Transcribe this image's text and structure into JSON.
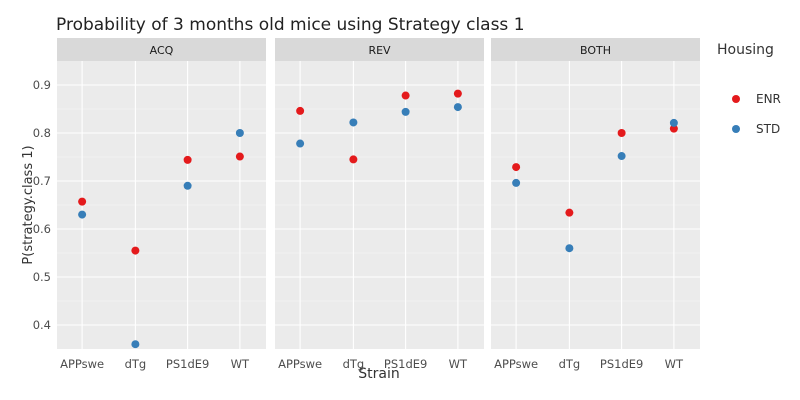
{
  "chart_data": {
    "type": "scatter",
    "title": "Probability of 3 months old mice using Strategy class 1",
    "xlabel": "Strain",
    "ylabel": "P(strategy.class 1)",
    "ylim": [
      0.35,
      0.95
    ],
    "yticks": [
      0.4,
      0.5,
      0.6,
      0.7,
      0.8,
      0.9
    ],
    "yticklabels": [
      "0.4",
      "0.5",
      "0.6",
      "0.7",
      "0.8",
      "0.9"
    ],
    "categories": [
      "APPswe",
      "dTg",
      "PS1dE9",
      "WT"
    ],
    "grid": true,
    "legend": {
      "title": "Housing",
      "placement": "right",
      "entries": [
        {
          "name": "ENR",
          "color": "#e41a1c"
        },
        {
          "name": "STD",
          "color": "#377eb8"
        }
      ]
    },
    "panels": [
      {
        "name": "ACQ",
        "series": [
          {
            "name": "ENR",
            "values": [
              0.657,
              0.555,
              0.744,
              0.751
            ]
          },
          {
            "name": "STD",
            "values": [
              0.63,
              0.36,
              0.69,
              0.8
            ]
          }
        ]
      },
      {
        "name": "REV",
        "series": [
          {
            "name": "ENR",
            "values": [
              0.846,
              0.745,
              0.878,
              0.882
            ]
          },
          {
            "name": "STD",
            "values": [
              0.778,
              0.822,
              0.844,
              0.854
            ]
          }
        ]
      },
      {
        "name": "BOTH",
        "series": [
          {
            "name": "ENR",
            "values": [
              0.729,
              0.634,
              0.8,
              0.809
            ]
          },
          {
            "name": "STD",
            "values": [
              0.696,
              0.56,
              0.752,
              0.821
            ]
          }
        ]
      }
    ]
  }
}
